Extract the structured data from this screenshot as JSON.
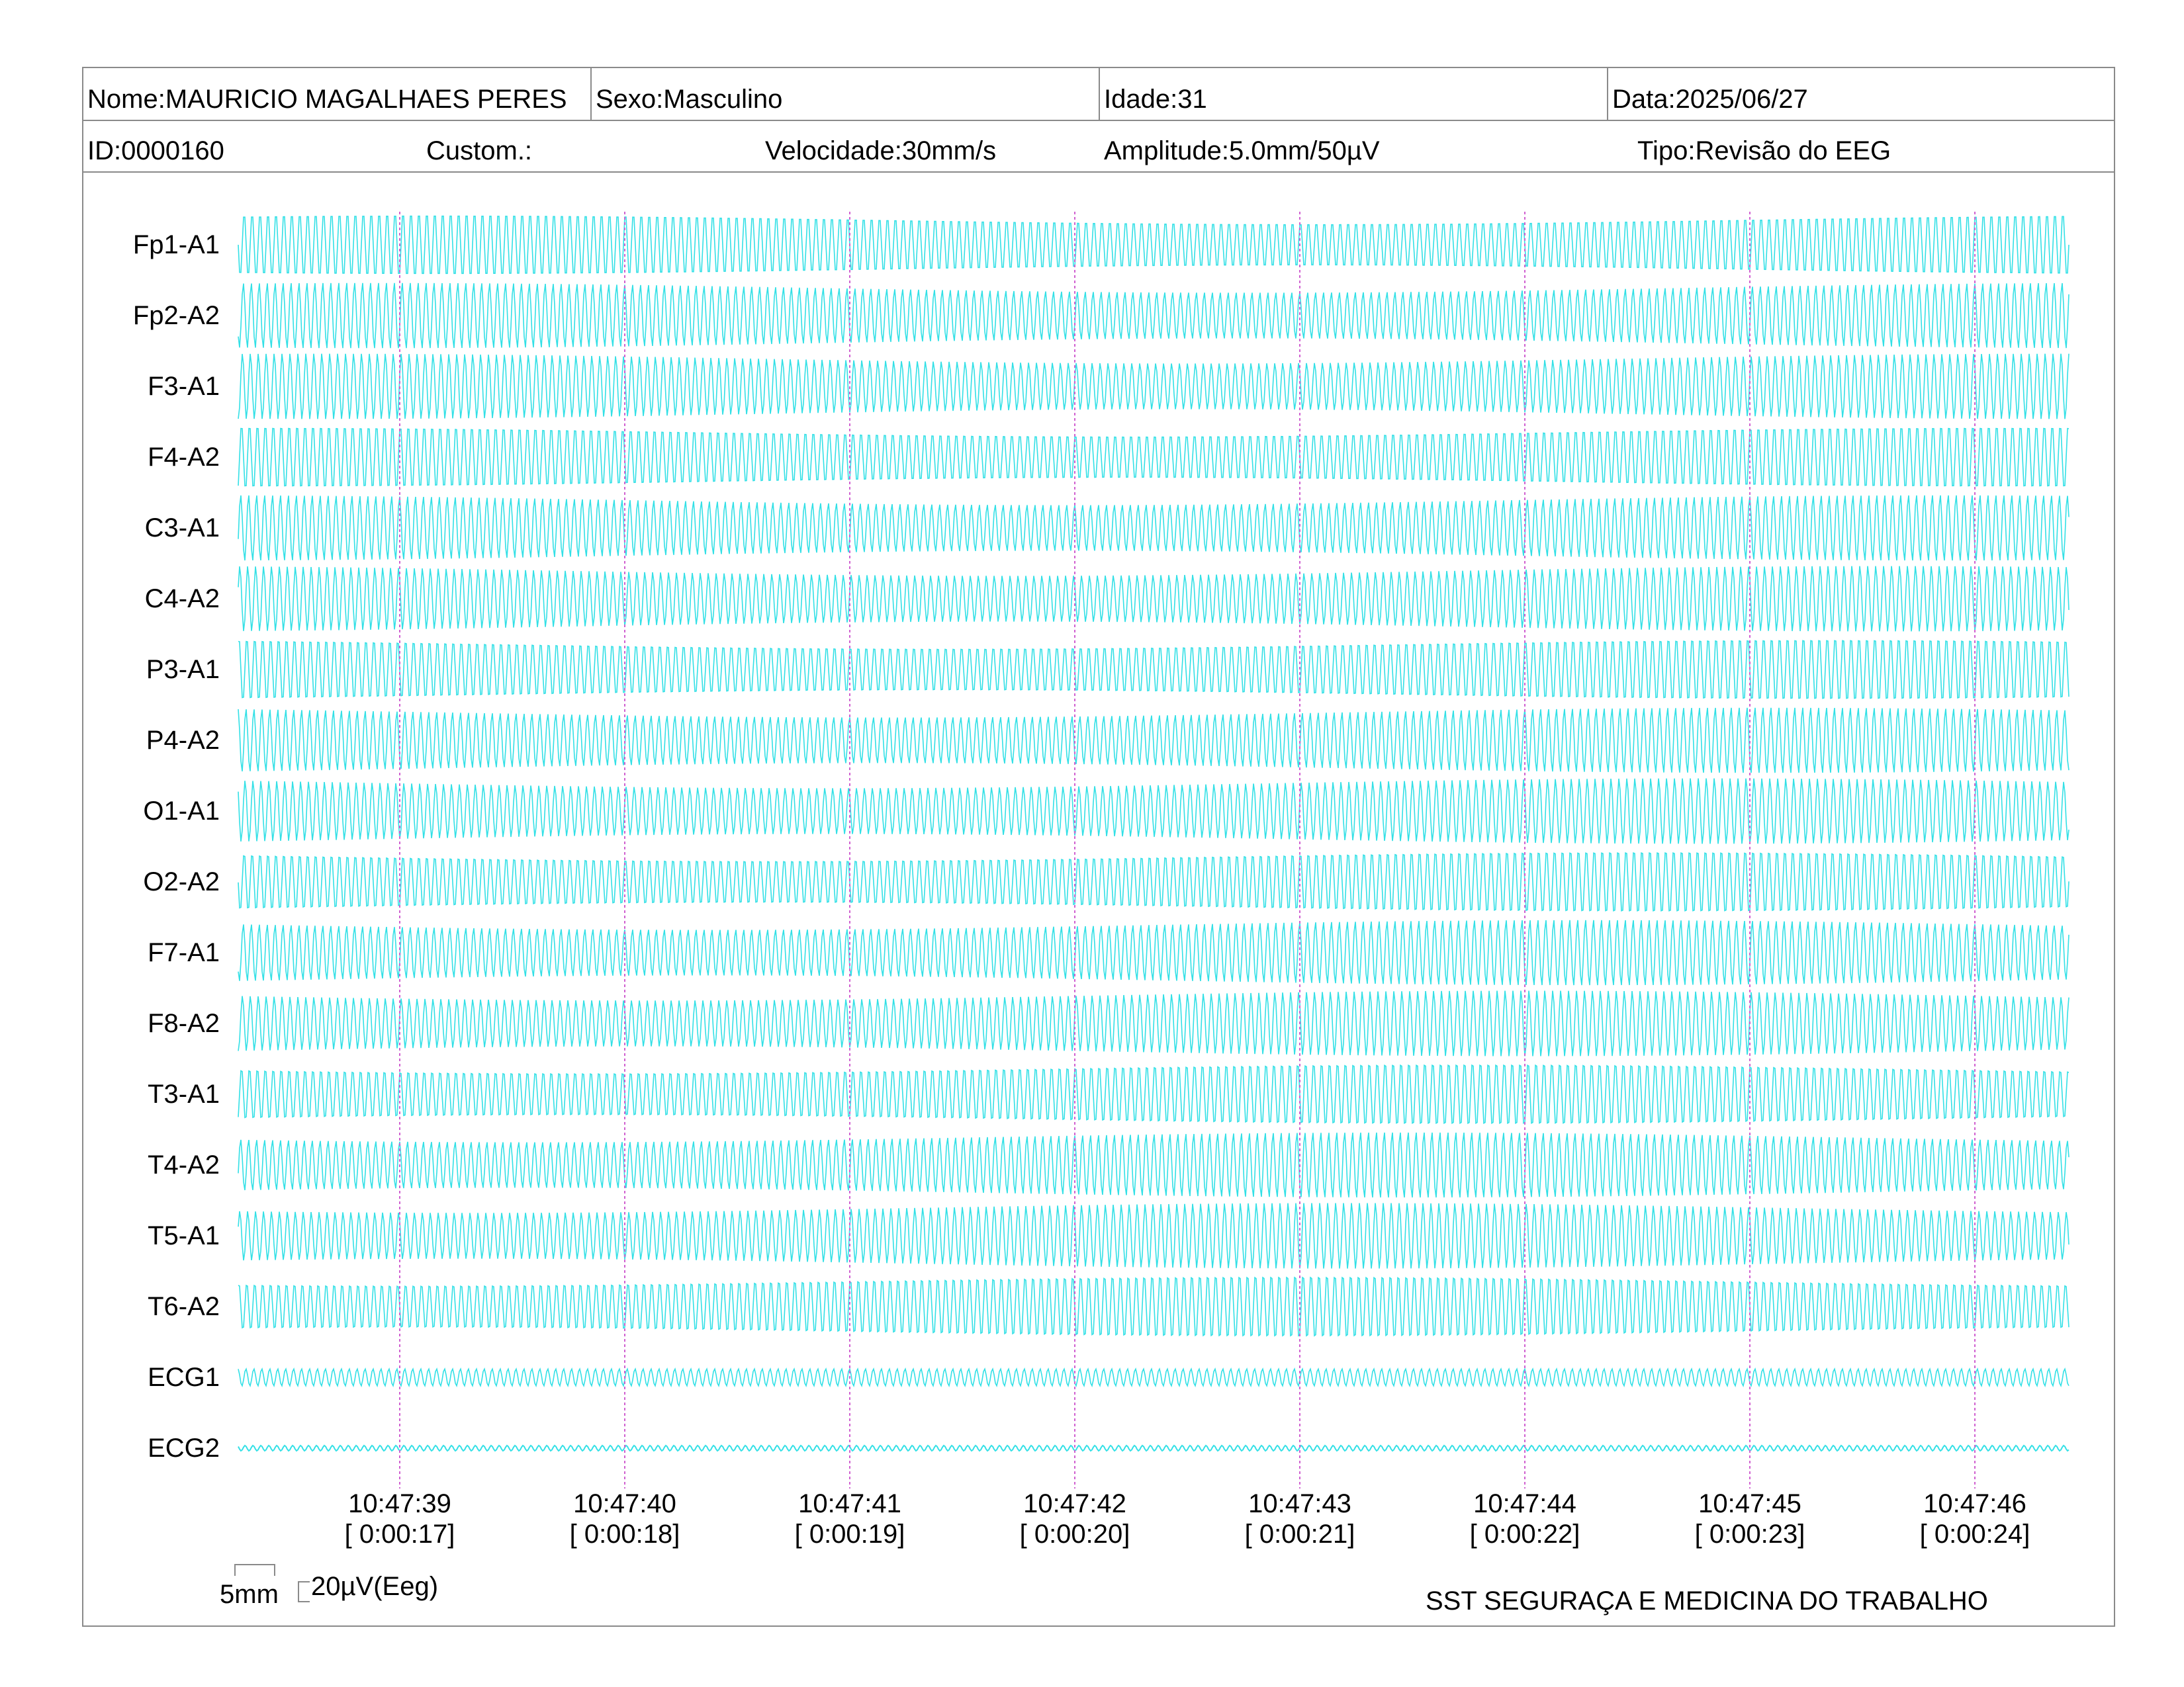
{
  "header": {
    "row1": {
      "name": "Nome:MAURICIO MAGALHAES PERES",
      "sex": "Sexo:Masculino",
      "age": "Idade:31",
      "date": "Data:2025/06/27"
    },
    "row2": {
      "id": "ID:0000160",
      "custom": "Custom.:",
      "speed": "Velocidade:30mm/s",
      "amplitude": "Amplitude:5.0mm/50µV",
      "type": "Tipo:Revisão do EEG"
    }
  },
  "channels": [
    "Fp1-A1",
    "Fp2-A2",
    "F3-A1",
    "F4-A2",
    "C3-A1",
    "C4-A2",
    "P3-A1",
    "P4-A2",
    "O1-A1",
    "O2-A2",
    "F7-A1",
    "F8-A2",
    "T3-A1",
    "T4-A2",
    "T5-A1",
    "T6-A2",
    "ECG1",
    "ECG2"
  ],
  "time_marks": [
    {
      "clock": "10:47:39",
      "elapsed": "[ 0:00:17]"
    },
    {
      "clock": "10:47:40",
      "elapsed": "[ 0:00:18]"
    },
    {
      "clock": "10:47:41",
      "elapsed": "[ 0:00:19]"
    },
    {
      "clock": "10:47:42",
      "elapsed": "[ 0:00:20]"
    },
    {
      "clock": "10:47:43",
      "elapsed": "[ 0:00:21]"
    },
    {
      "clock": "10:47:44",
      "elapsed": "[ 0:00:22]"
    },
    {
      "clock": "10:47:45",
      "elapsed": "[ 0:00:23]"
    },
    {
      "clock": "10:47:46",
      "elapsed": "[ 0:00:24]"
    }
  ],
  "scale": {
    "time_label": "5mm",
    "amp_label": "20µV(Eeg)"
  },
  "footer_org": "SST SEGURAÇA E MEDICINA DO TRABALHO",
  "colors": {
    "trace": "#33e0e6",
    "marker": "#d060d0",
    "border": "#8a8a8a"
  }
}
